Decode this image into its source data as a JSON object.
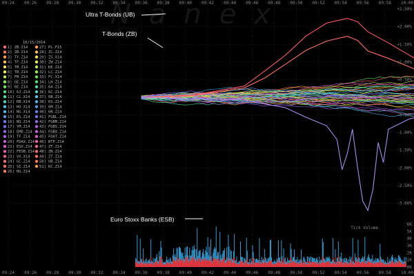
{
  "chart_data": {
    "type": "line",
    "title": "",
    "watermark": "Nanex",
    "date": "10/15/2014",
    "x_ticks": [
      "09:24",
      "09:26",
      "09:28",
      "09:30",
      "09:32",
      "09:34",
      "09:36",
      "09:38",
      "09:40",
      "09:42",
      "09:44",
      "09:46",
      "09:48",
      "09:50",
      "09:52",
      "09:54",
      "09:56",
      "09:58",
      "10:00"
    ],
    "y_ticks": [
      "+2.50%",
      "+2.00%",
      "+1.50%",
      "+1.00%",
      "+0.50%",
      "0%",
      "-0.50%",
      "-1.00%",
      "-1.50%",
      "-2.00%",
      "-2.50%",
      "-3.00%"
    ],
    "ylim": [
      -3.5,
      2.6
    ],
    "volume": {
      "label": "Tick Volume",
      "ticks": [
        "6K",
        "5K",
        "4K",
        "3K",
        "2K",
        "1K",
        "0K"
      ],
      "ylim": [
        0,
        6000
      ]
    },
    "legend": [
      "ZB.Z14",
      "ZB.Z14",
      "TY.Z14",
      "TF.Z14",
      "TM.Z14",
      "TB.Z14",
      "FM.Z14",
      "GE.Z14",
      "6E.Z14",
      "6J.Z14",
      "CL.X14",
      "RB.X14",
      "HO.X14",
      "NG.X14",
      "ES.Z14",
      "NQ.Z14",
      "YM.Z14",
      "EMD.Z14",
      "TF.Z14",
      "FDAX.Z14",
      "ESX.Z14",
      "FESB.Z14",
      "VX.X14",
      "GC.Z14",
      "SI.Z14",
      "HG.Z14",
      "PL.F15",
      "ZC.Z14",
      "ZS.X14",
      "ZW.Z14",
      "KE.Z14",
      "LC.Z14",
      "FC.X14",
      "LH.Z14",
      "6A.Z14",
      "6C.Z14",
      "6B.Z14",
      "6S.Z14",
      "6M.Z14",
      "6N.Z14",
      "FGBL.Z14",
      "FGBM.Z14",
      "FGBS.Z14",
      "FGBX.Z14",
      "FOAT.Z14",
      "BTP.Z14",
      "ZF.Z14",
      "ZN.Z14",
      "ZT.Z14",
      "UB.Z14",
      "KC.Z14"
    ],
    "legend_colors": [
      "#ff6a6a",
      "#ff7d4d",
      "#ff9f47",
      "#ffbf3f",
      "#ffe34a",
      "#e8f04a",
      "#c2ef4a",
      "#94ee4c",
      "#6ae85a",
      "#4fe278",
      "#4be0a0",
      "#4ad8c4",
      "#4ccbe0",
      "#4fb4ec",
      "#5a98ee",
      "#6a80ee",
      "#7d70ec",
      "#9468e8",
      "#ad62e2",
      "#c75ed8",
      "#de5cc8",
      "#ee5cae",
      "#f46290",
      "#f66c74"
    ],
    "annotations": [
      "Ultra T-Bonds (UB)",
      "T-Bonds (ZB)",
      "Euro Stoxx Banks (ESB)"
    ],
    "series": [
      {
        "name": "Ultra T-Bonds (UB)",
        "color": "#ff5a68",
        "points": [
          [
            0,
            0
          ],
          [
            5,
            0.05
          ],
          [
            10,
            0.3
          ],
          [
            12,
            0.75
          ],
          [
            14,
            1.2
          ],
          [
            16,
            1.75
          ],
          [
            18,
            2.1
          ],
          [
            20,
            2.25
          ],
          [
            21,
            2.15
          ],
          [
            22,
            1.85
          ],
          [
            24,
            1.55
          ],
          [
            26,
            1.2
          ],
          [
            28,
            0.85
          ],
          [
            30,
            0.55
          ],
          [
            32,
            0.2
          ],
          [
            33,
            0.05
          ]
        ]
      },
      {
        "name": "T-Bonds (ZB)",
        "color": "#ff7268",
        "points": [
          [
            0,
            0
          ],
          [
            5,
            0.05
          ],
          [
            10,
            0.25
          ],
          [
            12,
            0.55
          ],
          [
            14,
            0.95
          ],
          [
            16,
            1.35
          ],
          [
            18,
            1.6
          ],
          [
            20,
            1.72
          ],
          [
            21,
            1.6
          ],
          [
            22,
            1.3
          ],
          [
            24,
            1.1
          ],
          [
            26,
            0.85
          ],
          [
            28,
            0.6
          ],
          [
            30,
            0.4
          ],
          [
            32,
            0.15
          ],
          [
            33,
            0.05
          ]
        ]
      },
      {
        "name": "Euro Stoxx Banks (ESB)",
        "color": "#a98ff0",
        "points": [
          [
            0,
            0
          ],
          [
            10,
            -0.1
          ],
          [
            14,
            -0.3
          ],
          [
            16,
            -0.55
          ],
          [
            18,
            -0.8
          ],
          [
            19,
            -1.2
          ],
          [
            19.5,
            -2.05
          ],
          [
            20,
            -1.6
          ],
          [
            20.5,
            -0.9
          ],
          [
            21,
            -2.0
          ],
          [
            21.5,
            -2.95
          ],
          [
            22,
            -3.2
          ],
          [
            22.5,
            -2.6
          ],
          [
            23,
            -1.3
          ],
          [
            23.5,
            -1.85
          ],
          [
            24,
            -0.9
          ],
          [
            26,
            -0.6
          ],
          [
            28,
            -0.45
          ],
          [
            30,
            -0.4
          ],
          [
            32,
            -0.35
          ],
          [
            35,
            -0.35
          ]
        ]
      }
    ]
  }
}
